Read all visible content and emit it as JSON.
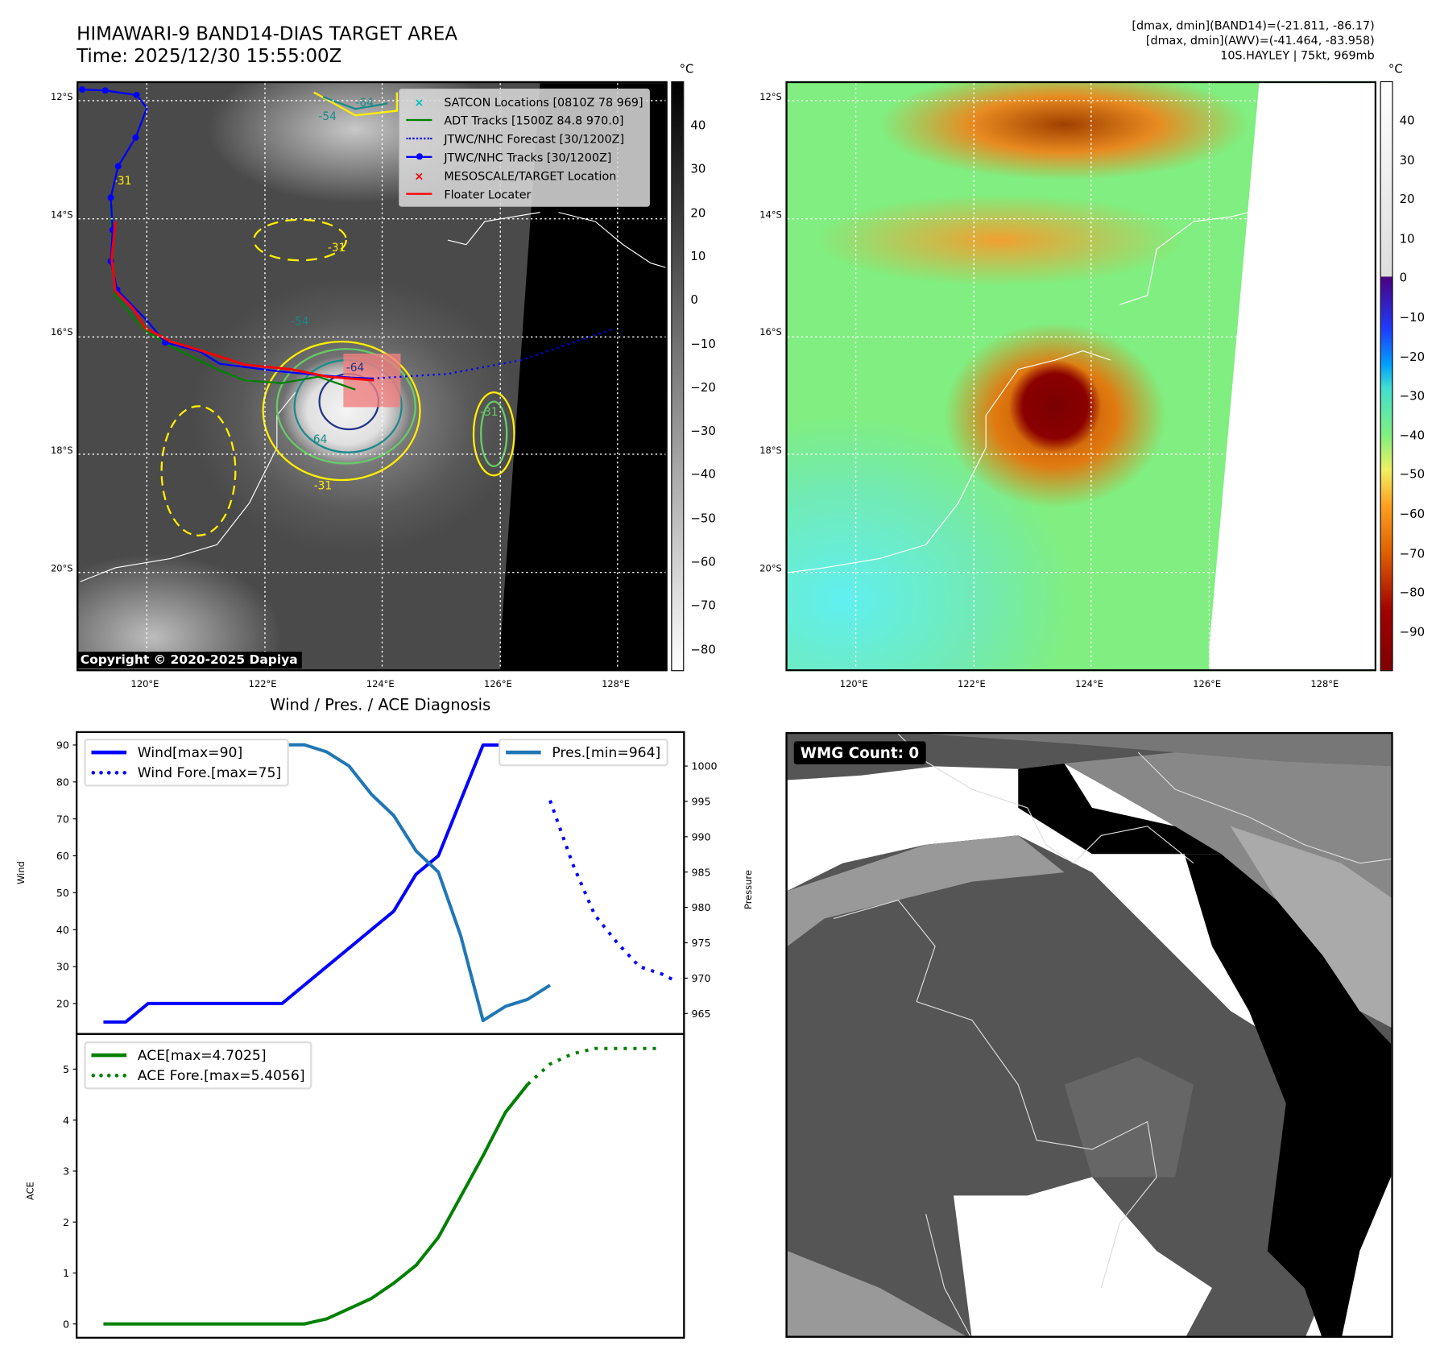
{
  "header": {
    "title": "HIMAWARI-9 BAND14-DIAS TARGET AREA",
    "time": "Time: 2025/12/30 15:55:00Z"
  },
  "info": {
    "line1": "[dmax, dmin](BAND14)=(-21.811, -86.17)",
    "line2": "[dmax, dmin](AWV)=(-41.464, -83.958)",
    "line3": "10S.HAYLEY | 75kt, 969mb"
  },
  "maps": {
    "lat_labels": [
      "12°S",
      "14°S",
      "16°S",
      "18°S",
      "20°S"
    ],
    "lon_labels": [
      "120°E",
      "122°E",
      "124°E",
      "126°E",
      "128°E"
    ],
    "copyright": "Copyright © 2020-2025 Dapiya",
    "contour_labels": [
      "-64",
      "-54",
      "-31",
      "-31",
      "-64",
      "-54",
      "-31",
      "-31",
      "-64"
    ],
    "legend": [
      {
        "label": "SATCON Locations [0810Z 78 969]",
        "color": "#00bfbf"
      },
      {
        "label": "ADT Tracks [1500Z 84.8 970.0]",
        "color": "#008000"
      },
      {
        "label": "JTWC/NHC Forecast [30/1200Z]",
        "color": "#0000ff"
      },
      {
        "label": "JTWC/NHC Tracks [30/1200Z]",
        "color": "#0000ff"
      },
      {
        "label": "MESOSCALE/TARGET Location",
        "color": "#ff0000"
      },
      {
        "label": "Floater Locater",
        "color": "#ff0000"
      }
    ]
  },
  "colorbar_left": {
    "unit": "°C",
    "ticks": [
      "40",
      "30",
      "20",
      "10",
      "0",
      "−10",
      "−20",
      "−30",
      "−40",
      "−50",
      "−60",
      "−70",
      "−80"
    ]
  },
  "colorbar_right": {
    "unit": "°C",
    "ticks": [
      "40",
      "30",
      "20",
      "10",
      "0",
      "−10",
      "−20",
      "−30",
      "−40",
      "−50",
      "−60",
      "−70",
      "−80",
      "−90"
    ]
  },
  "wmg": {
    "label": "WMG Count: 0"
  },
  "chart_data": [
    {
      "type": "line",
      "title": "Wind / Pres. / ACE Diagnosis",
      "ylabel": "Wind",
      "y2label": "Pressure",
      "xlim": [
        -1.2,
        26
      ],
      "ylim": [
        11.75,
        93.5
      ],
      "y2lim": [
        962.1,
        1004.8
      ],
      "yticks": [
        20,
        30,
        40,
        50,
        60,
        70,
        80,
        90
      ],
      "y2ticks": [
        965,
        970,
        975,
        980,
        985,
        990,
        995,
        1000
      ],
      "series": [
        {
          "name": "Wind[max=90]",
          "color": "#0000ff",
          "style": "solid",
          "axis": "left",
          "x": [
            0,
            1,
            2,
            3,
            4,
            5,
            6,
            7,
            8,
            9,
            10,
            11,
            12,
            13,
            14,
            15,
            16,
            17,
            18,
            19
          ],
          "y": [
            15,
            15,
            20,
            20,
            20,
            20,
            20,
            20,
            20,
            25,
            30,
            35,
            40,
            45,
            55,
            60,
            75,
            90,
            90,
            90
          ]
        },
        {
          "name": "Wind Fore.[max=75]",
          "color": "#0000ff",
          "style": "dotted",
          "axis": "left",
          "x": [
            20,
            21,
            22,
            23,
            24,
            25,
            25.65
          ],
          "y": [
            75,
            58,
            44,
            36.5,
            30,
            28,
            26
          ]
        },
        {
          "name": "Pres.[min=964]",
          "color": "#1f77b4",
          "style": "solid",
          "axis": "right",
          "x": [
            0,
            1,
            2,
            3,
            4,
            5,
            6,
            7,
            8,
            9,
            10,
            11,
            12,
            13,
            14,
            15,
            16,
            17,
            18,
            19,
            20
          ],
          "y": [
            1003,
            1003,
            1003,
            1003,
            1003,
            1003,
            1003,
            1003,
            1003,
            1003,
            1002,
            1000,
            996,
            993,
            988,
            985,
            976,
            964,
            966,
            967,
            969
          ]
        }
      ]
    },
    {
      "type": "line",
      "ylabel": "ACE",
      "xlim": [
        -1.2,
        26
      ],
      "ylim": [
        -0.27,
        5.69
      ],
      "yticks": [
        0,
        1,
        2,
        3,
        4,
        5
      ],
      "series": [
        {
          "name": "ACE[max=4.7025]",
          "color": "#008000",
          "style": "solid",
          "x": [
            0,
            1,
            2,
            3,
            4,
            5,
            6,
            7,
            8,
            9,
            10,
            11,
            12,
            13,
            14,
            15,
            16,
            17,
            18,
            19
          ],
          "y": [
            0,
            0,
            0,
            0,
            0,
            0,
            0,
            0,
            0,
            0,
            0.1,
            0.3,
            0.5,
            0.8,
            1.15,
            1.7,
            2.5,
            3.3,
            4.15,
            4.7025
          ]
        },
        {
          "name": "ACE Fore.[max=5.4056]",
          "color": "#008000",
          "style": "dotted",
          "x": [
            19,
            20,
            21,
            22,
            23,
            24,
            25
          ],
          "y": [
            4.7025,
            5.1,
            5.3,
            5.4056,
            5.4056,
            5.4056,
            5.4056
          ]
        }
      ]
    }
  ]
}
